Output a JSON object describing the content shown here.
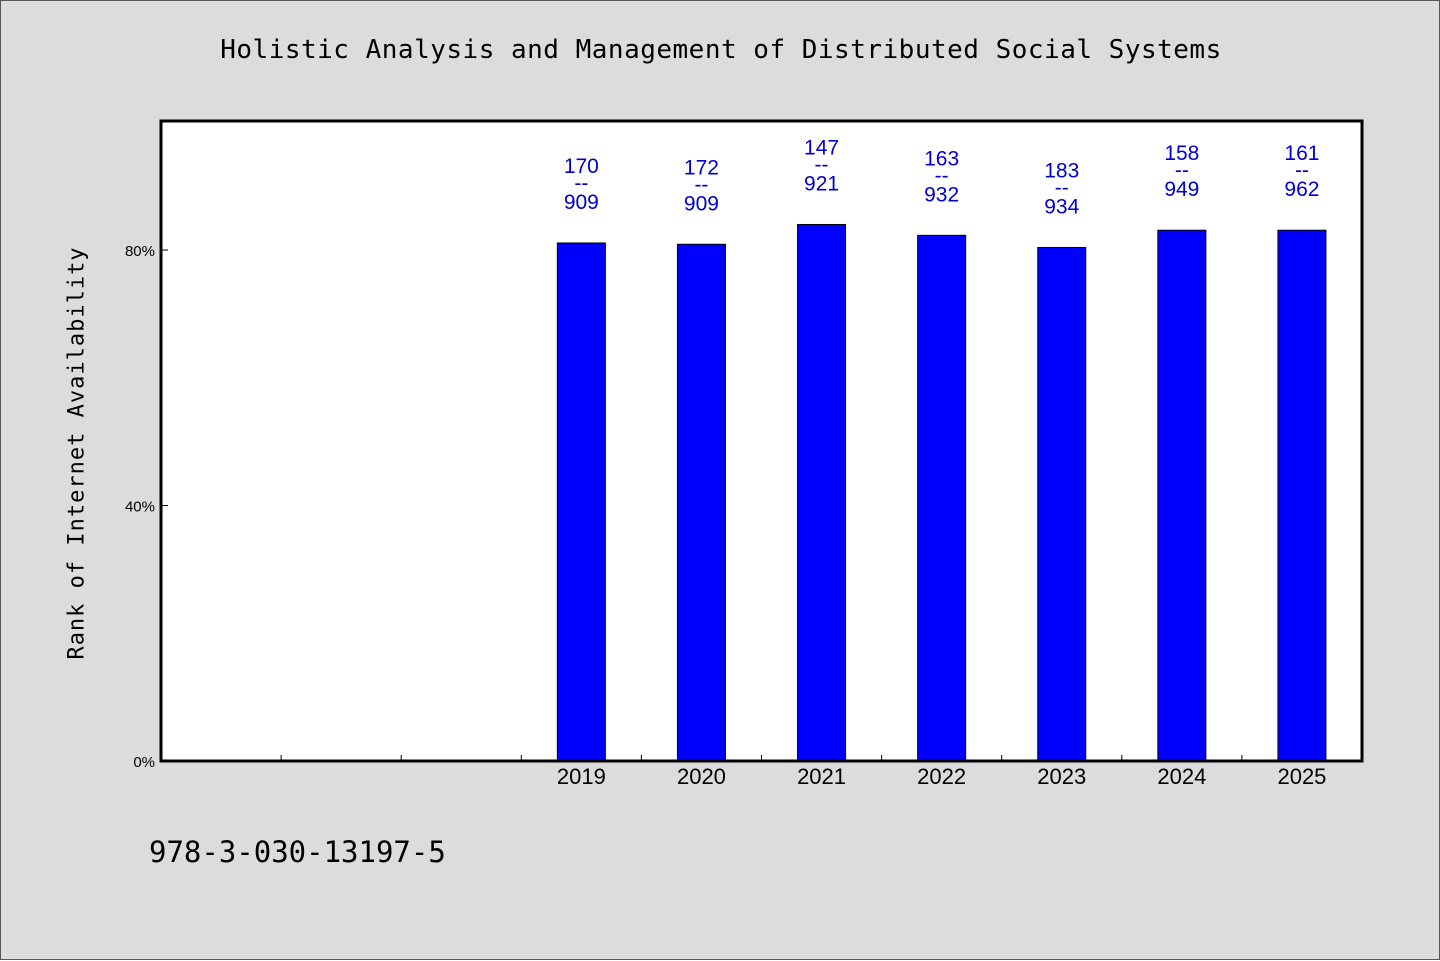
{
  "chart_data": {
    "type": "bar",
    "title": "Holistic Analysis and Management of Distributed Social Systems",
    "xlabel": "",
    "ylabel": "Rank of Internet Availability",
    "categories": [
      "",
      "",
      "",
      "2019",
      "2020",
      "2021",
      "2022",
      "2023",
      "2024",
      "2025"
    ],
    "values": [
      null,
      null,
      null,
      81.1,
      80.9,
      84.0,
      82.3,
      80.4,
      83.1,
      83.1
    ],
    "data_labels": [
      null,
      null,
      null,
      [
        "170",
        "--",
        "909"
      ],
      [
        "172",
        "--",
        "909"
      ],
      [
        "147",
        "--",
        "921"
      ],
      [
        "163",
        "--",
        "932"
      ],
      [
        "183",
        "--",
        "934"
      ],
      [
        "158",
        "--",
        "949"
      ],
      [
        "161",
        "--",
        "962"
      ]
    ],
    "yticks": [
      0,
      40,
      80
    ],
    "ytick_labels": [
      "0%",
      "40%",
      "80%"
    ],
    "ylim": [
      0,
      100.2
    ],
    "grid": false,
    "legend": "none",
    "colors": {
      "bar": "#0000ff",
      "data_label": "#0000cc",
      "plot_background": "#ffffff",
      "page_background": "#dcdcdc"
    }
  },
  "footer": {
    "text": "978-3-030-13197-5"
  }
}
